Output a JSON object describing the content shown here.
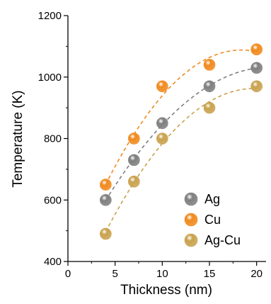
{
  "chart_data": {
    "type": "scatter",
    "xlabel": "Thickness (nm)",
    "ylabel": "Temperature (K)",
    "xlim": [
      0,
      21
    ],
    "ylim": [
      400,
      1200
    ],
    "xticks": [
      "0",
      "5",
      "10",
      "15",
      "20"
    ],
    "yticks": [
      "400",
      "600",
      "800",
      "1000",
      "1200"
    ],
    "grid": false,
    "legend_position": "bottom-right",
    "x": [
      4,
      7,
      10,
      15,
      20
    ],
    "series": [
      {
        "name": "Ag",
        "values": [
          600,
          730,
          850,
          970,
          1030
        ],
        "color": "#7f7f7f"
      },
      {
        "name": "Cu",
        "values": [
          650,
          800,
          970,
          1040,
          1090
        ],
        "color": "#f08a1e"
      },
      {
        "name": "Ag-Cu",
        "values": [
          490,
          660,
          800,
          900,
          970
        ],
        "color": "#c9a24e"
      }
    ],
    "fit_lines": "dashed quadratic fit per series"
  }
}
